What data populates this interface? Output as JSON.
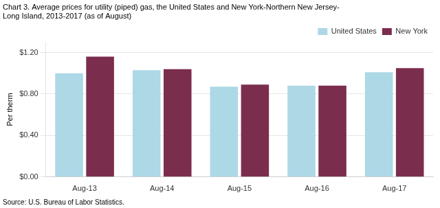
{
  "chart_data": {
    "type": "bar",
    "title": [
      "Chart 3. Average prices for utility (piped) gas, the United States and New York-Northern New Jersey-",
      "Long Island, 2013-2017 (as of August)"
    ],
    "ylabel": "Per therm",
    "source": "Source: U.S. Bureau of Labor Statistics.",
    "categories": [
      "Aug-13",
      "Aug-14",
      "Aug-15",
      "Aug-16",
      "Aug-17"
    ],
    "series": [
      {
        "name": "United States",
        "color": "#ADD8E6",
        "values": [
          1.0,
          1.03,
          0.87,
          0.88,
          1.01
        ]
      },
      {
        "name": "New York",
        "color": "#7B2D4E",
        "values": [
          1.16,
          1.04,
          0.89,
          0.88,
          1.05
        ]
      }
    ],
    "ylim": [
      0.0,
      1.3
    ],
    "yticks": [
      {
        "value": 0.0,
        "label": "$0.00"
      },
      {
        "value": 0.4,
        "label": "$0.40"
      },
      {
        "value": 0.8,
        "label": "$0.80"
      },
      {
        "value": 1.2,
        "label": "$1.20"
      }
    ],
    "grid": true,
    "legend": "upper right"
  }
}
